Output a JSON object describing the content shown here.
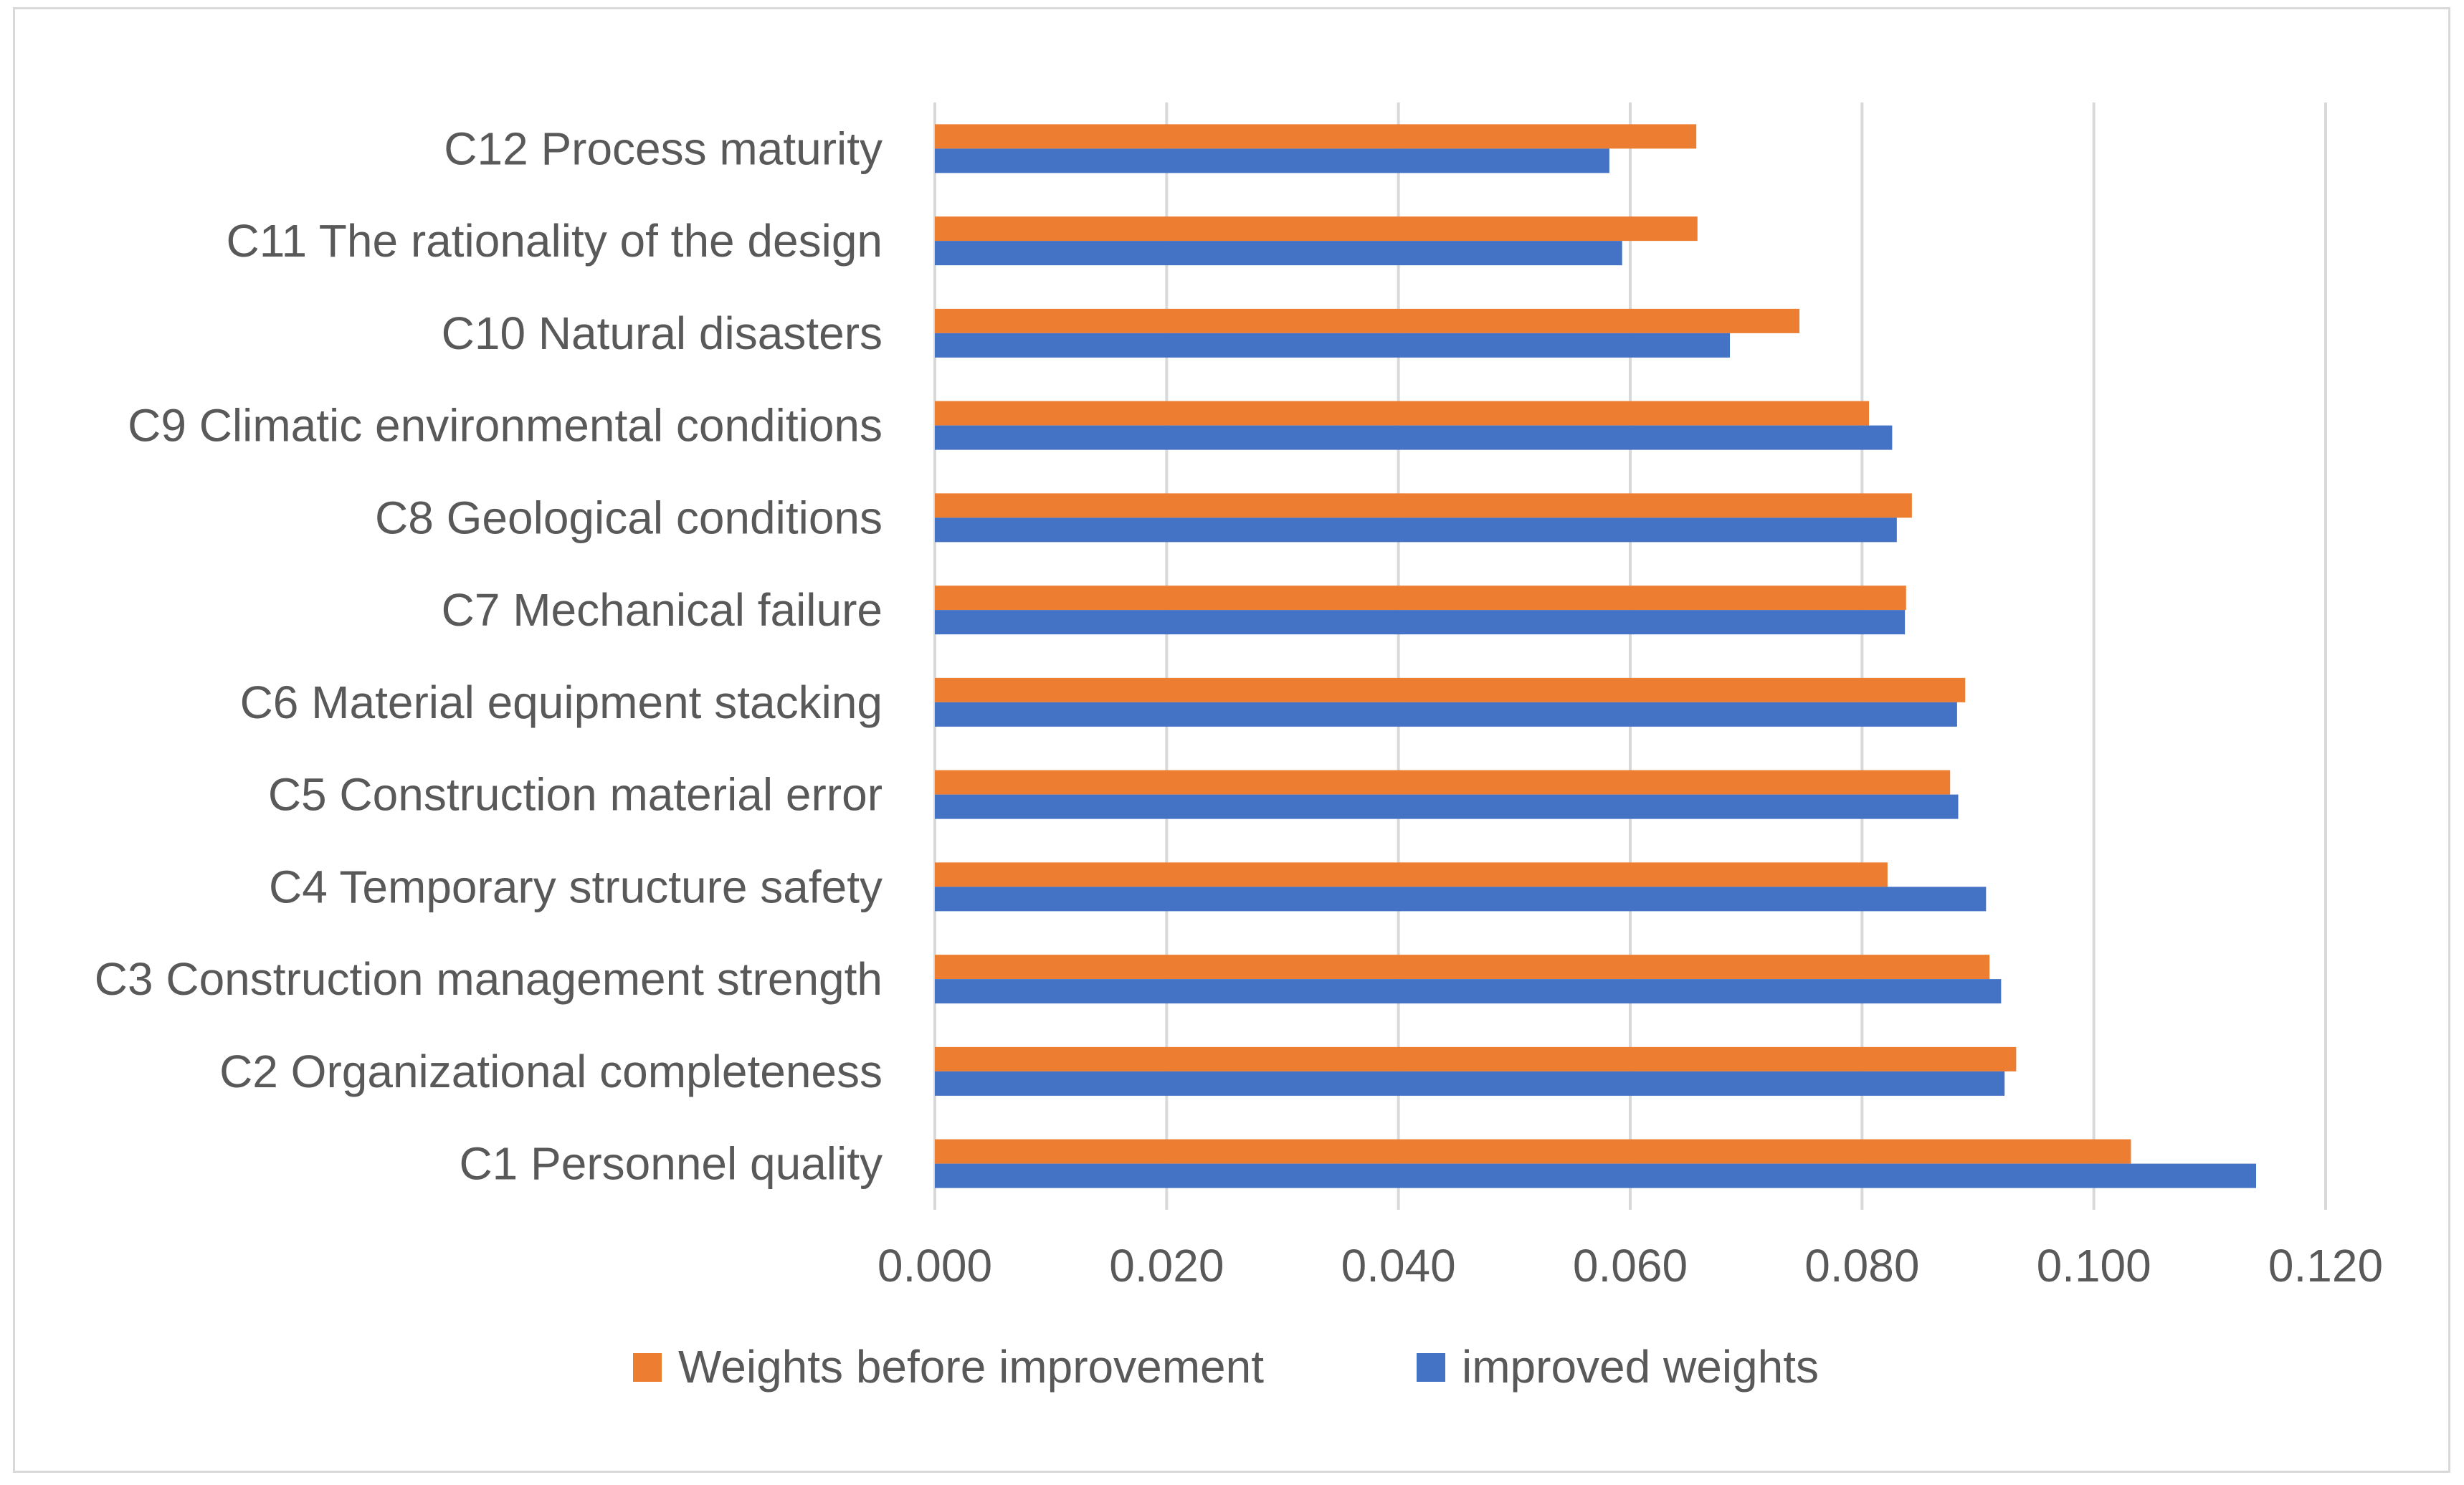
{
  "chart_data": {
    "type": "bar",
    "orientation": "horizontal",
    "categories": [
      "C1 Personnel quality",
      "C2 Organizational completeness",
      "C3 Construction management strength",
      "C4 Temporary structure safety",
      "C5 Construction material error",
      "C6 Material equipment stacking",
      "C7 Mechanical failure",
      "C8 Geological conditions",
      "C9 Climatic environmental conditions",
      "C10 Natural disasters",
      "C11 The rationality of the design",
      "C12 Process maturity"
    ],
    "series": [
      {
        "name": "Weights before improvement",
        "color": "#ED7D31",
        "values": [
          0.1032,
          0.0933,
          0.091,
          0.0822,
          0.0876,
          0.0889,
          0.0838,
          0.0843,
          0.0806,
          0.0746,
          0.0658,
          0.0657
        ]
      },
      {
        "name": "improved weights",
        "color": "#4472C4",
        "values": [
          0.114,
          0.0923,
          0.092,
          0.0907,
          0.0883,
          0.0882,
          0.0837,
          0.083,
          0.0826,
          0.0686,
          0.0593,
          0.0582
        ]
      }
    ],
    "x_ticks": [
      "0.000",
      "0.020",
      "0.040",
      "0.060",
      "0.080",
      "0.100",
      "0.120"
    ],
    "xlim": [
      0,
      0.12
    ],
    "grid": "vertical major gridlines",
    "legend_position": "bottom",
    "title": "",
    "xlabel": "",
    "ylabel": ""
  }
}
